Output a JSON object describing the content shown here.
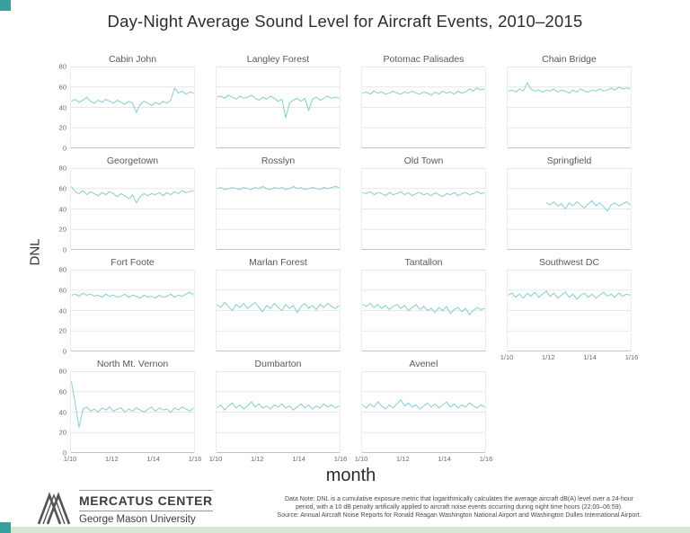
{
  "page": {
    "title": "Day-Night Average Sound Level for Aircraft Events, 2010–2015",
    "y_axis_label": "DNL",
    "x_axis_label": "month"
  },
  "accent": {
    "teal_square": "#34a19c",
    "bottom_bar": "#d6e8d4"
  },
  "footer": {
    "logo_primary": "MERCATUS CENTER",
    "logo_secondary": "George Mason University",
    "note_line1": "Data Note: DNL is a cumulative exposure metric that logarithmically calculates the average aircraft dB(A) level over a 24-hour",
    "note_line2": "period, with a 10 dB penalty artifically applied to aircraft noise events occurring during night time hours (22:00–06:59).",
    "note_line3": "Source: Annual Aircraft Noise Reports for Ronald Reagan Washington National Airport and Washington Dulles International Airport."
  },
  "chart_data": {
    "type": "line",
    "title": "Day-Night Average Sound Level for Aircraft Events, 2010–2015",
    "xlabel": "month",
    "ylabel": "DNL",
    "ylim": [
      0,
      80
    ],
    "yticks": [
      0,
      20,
      40,
      60,
      80
    ],
    "xticks": [
      "1/10",
      "1/12",
      "1/14",
      "1/16"
    ],
    "x_domain": [
      "1/10",
      "1/16"
    ],
    "grid": "horizontal",
    "legend": "none",
    "line_color": "#87ccd2",
    "grid_color": "#e7e7e7",
    "axis_color": "#c4c4c4",
    "panel_border_color": "#ececec",
    "layout": {
      "rows": 4,
      "cols": 4,
      "last_row_panels": 3
    },
    "panels": [
      {
        "title": "Cabin John",
        "row": 0,
        "col": 0,
        "values": [
          46,
          48,
          45,
          47,
          50,
          46,
          44,
          47,
          45,
          48,
          46,
          44,
          47,
          45,
          43,
          46,
          44,
          35,
          43,
          46,
          44,
          42,
          45,
          43,
          46,
          44,
          47,
          59,
          54,
          56,
          53,
          55,
          54
        ]
      },
      {
        "title": "Langley Forest",
        "row": 0,
        "col": 1,
        "values": [
          50,
          51,
          49,
          52,
          50,
          48,
          51,
          49,
          50,
          52,
          49,
          47,
          50,
          48,
          51,
          49,
          46,
          48,
          30,
          44,
          47,
          49,
          46,
          49,
          37,
          48,
          50,
          47,
          49,
          51,
          49,
          50,
          49
        ]
      },
      {
        "title": "Potomac Palisades",
        "row": 0,
        "col": 2,
        "values": [
          54,
          55,
          53,
          56,
          54,
          55,
          53,
          54,
          56,
          54,
          53,
          55,
          54,
          56,
          54,
          53,
          55,
          54,
          52,
          55,
          53,
          56,
          54,
          55,
          53,
          56,
          54,
          55,
          58,
          56,
          59,
          57,
          58
        ]
      },
      {
        "title": "Chain Bridge",
        "row": 0,
        "col": 3,
        "values": [
          56,
          57,
          55,
          58,
          56,
          64,
          58,
          56,
          57,
          55,
          57,
          56,
          58,
          55,
          57,
          56,
          54,
          57,
          55,
          58,
          56,
          55,
          57,
          56,
          58,
          56,
          57,
          59,
          57,
          60,
          58,
          59,
          58
        ]
      },
      {
        "title": "Georgetown",
        "row": 1,
        "col": 0,
        "values": [
          62,
          57,
          55,
          58,
          54,
          57,
          55,
          53,
          56,
          54,
          57,
          55,
          52,
          55,
          53,
          50,
          54,
          46,
          52,
          55,
          53,
          55,
          54,
          56,
          53,
          56,
          54,
          57,
          55,
          58,
          56,
          57,
          58
        ]
      },
      {
        "title": "Rosslyn",
        "row": 1,
        "col": 1,
        "values": [
          60,
          61,
          59,
          60,
          61,
          60,
          59,
          61,
          60,
          59,
          61,
          60,
          62,
          60,
          59,
          61,
          60,
          61,
          59,
          60,
          62,
          60,
          61,
          59,
          60,
          61,
          60,
          59,
          61,
          60,
          61,
          62,
          61
        ]
      },
      {
        "title": "Old Town",
        "row": 1,
        "col": 2,
        "values": [
          56,
          55,
          57,
          54,
          56,
          55,
          53,
          56,
          54,
          55,
          57,
          54,
          56,
          53,
          55,
          56,
          54,
          55,
          53,
          56,
          54,
          52,
          55,
          54,
          56,
          53,
          55,
          56,
          54,
          55,
          57,
          55,
          56
        ]
      },
      {
        "title": "Springfield",
        "row": 1,
        "col": 3,
        "values": [
          null,
          null,
          null,
          null,
          null,
          null,
          null,
          null,
          null,
          null,
          46,
          44,
          47,
          43,
          45,
          40,
          46,
          43,
          47,
          44,
          41,
          45,
          48,
          43,
          46,
          42,
          38,
          44,
          46,
          43,
          45,
          47,
          44
        ]
      },
      {
        "title": "Fort Foote",
        "row": 2,
        "col": 0,
        "values": [
          55,
          56,
          54,
          57,
          55,
          56,
          54,
          55,
          53,
          56,
          54,
          55,
          53,
          54,
          56,
          53,
          55,
          54,
          52,
          55,
          53,
          54,
          52,
          55,
          53,
          54,
          56,
          53,
          55,
          54,
          56,
          58,
          55
        ]
      },
      {
        "title": "Marlan Forest",
        "row": 2,
        "col": 1,
        "values": [
          46,
          43,
          48,
          44,
          40,
          46,
          43,
          47,
          42,
          45,
          48,
          43,
          39,
          45,
          42,
          47,
          43,
          40,
          46,
          42,
          45,
          38,
          44,
          47,
          42,
          45,
          41,
          46,
          43,
          47,
          44,
          42,
          45
        ]
      },
      {
        "title": "Tantallon",
        "row": 2,
        "col": 2,
        "values": [
          46,
          44,
          47,
          43,
          46,
          42,
          45,
          41,
          44,
          46,
          42,
          45,
          40,
          43,
          46,
          41,
          44,
          40,
          42,
          38,
          43,
          40,
          44,
          37,
          41,
          43,
          39,
          42,
          36,
          40,
          43,
          41,
          42
        ]
      },
      {
        "title": "Southwest DC",
        "row": 2,
        "col": 3,
        "values": [
          55,
          57,
          53,
          56,
          52,
          57,
          54,
          58,
          53,
          56,
          59,
          54,
          57,
          52,
          55,
          58,
          53,
          56,
          51,
          55,
          57,
          53,
          56,
          52,
          55,
          58,
          54,
          56,
          53,
          57,
          54,
          56,
          55
        ]
      },
      {
        "title": "North Mt. Vernon",
        "row": 3,
        "col": 0,
        "values": [
          70,
          48,
          25,
          43,
          45,
          41,
          43,
          40,
          44,
          42,
          45,
          41,
          43,
          44,
          40,
          43,
          41,
          44,
          42,
          40,
          43,
          45,
          41,
          44,
          42,
          43,
          40,
          44,
          42,
          45,
          43,
          41,
          44
        ]
      },
      {
        "title": "Dumbarton",
        "row": 3,
        "col": 1,
        "values": [
          44,
          47,
          42,
          46,
          49,
          44,
          47,
          43,
          46,
          50,
          45,
          48,
          44,
          46,
          43,
          47,
          45,
          48,
          44,
          46,
          42,
          45,
          48,
          44,
          47,
          43,
          46,
          44,
          48,
          45,
          47,
          44,
          46
        ]
      },
      {
        "title": "Avenel",
        "row": 3,
        "col": 2,
        "values": [
          47,
          44,
          48,
          45,
          50,
          46,
          43,
          47,
          44,
          48,
          52,
          46,
          49,
          45,
          47,
          43,
          46,
          49,
          45,
          48,
          44,
          47,
          50,
          45,
          48,
          44,
          47,
          45,
          49,
          46,
          44,
          47,
          45
        ]
      }
    ]
  }
}
